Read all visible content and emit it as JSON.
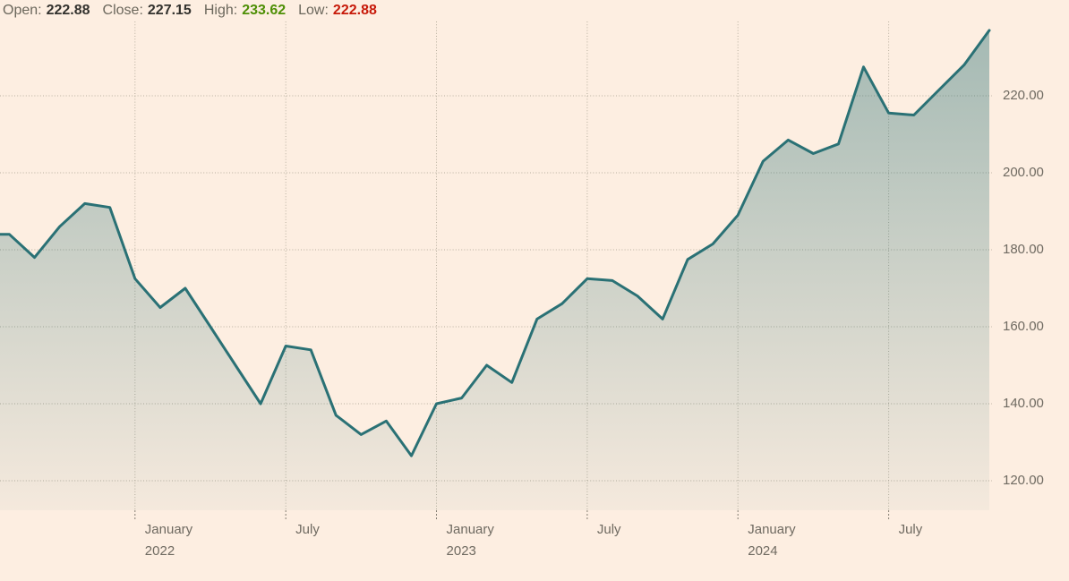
{
  "header": {
    "open_label": "Open:",
    "open_value": "222.88",
    "close_label": "Close:",
    "close_value": "227.15",
    "high_label": "High:",
    "high_value": "233.62",
    "low_label": "Low:",
    "low_value": "222.88"
  },
  "colors": {
    "background": "#fdeee1",
    "line": "#2a7175",
    "fill_top": "rgba(42,113,117,0.42)",
    "fill_bottom": "rgba(42,113,117,0.04)",
    "grid": "#b7ae9e",
    "tick": "#837d72",
    "axis_text": "#6f6a61",
    "header_label": "#6b675c",
    "header_value": "#33322e",
    "high_color": "#4e8f06",
    "low_color": "#c71a0a"
  },
  "chart_data": {
    "type": "area",
    "title": "",
    "xlabel": "",
    "ylabel": "",
    "grid": "dotted",
    "legend": "none",
    "ylim": [
      112,
      245
    ],
    "x": [
      "2021-08",
      "2021-09",
      "2021-10",
      "2021-11",
      "2021-12",
      "2022-01",
      "2022-02",
      "2022-03",
      "2022-04",
      "2022-05",
      "2022-06",
      "2022-07",
      "2022-08",
      "2022-09",
      "2022-10",
      "2022-11",
      "2022-12",
      "2023-01",
      "2023-02",
      "2023-03",
      "2023-04",
      "2023-05",
      "2023-06",
      "2023-07",
      "2023-08",
      "2023-09",
      "2023-10",
      "2023-11",
      "2023-12",
      "2024-01",
      "2024-02",
      "2024-03",
      "2024-04",
      "2024-05",
      "2024-06",
      "2024-07",
      "2024-08",
      "2024-09",
      "2024-10",
      "2024-11"
    ],
    "values": [
      184,
      178,
      186,
      192,
      191,
      172.5,
      165,
      170,
      160,
      150,
      140,
      155,
      154,
      137,
      132,
      135.5,
      126.5,
      140,
      141.5,
      150,
      145.5,
      162,
      166,
      172.5,
      172,
      168,
      162,
      177.5,
      181.5,
      189,
      203,
      208.5,
      205,
      207.5,
      227.5,
      215.5,
      215,
      221.5,
      228,
      237
    ],
    "x_ticks": [
      {
        "index": 5,
        "label": "January",
        "year": "2022"
      },
      {
        "index": 11,
        "label": "July",
        "year": ""
      },
      {
        "index": 17,
        "label": "January",
        "year": "2023"
      },
      {
        "index": 23,
        "label": "July",
        "year": ""
      },
      {
        "index": 29,
        "label": "January",
        "year": "2024"
      },
      {
        "index": 35,
        "label": "July",
        "year": ""
      }
    ],
    "y_ticks": [
      {
        "value": 220,
        "label": "220.00"
      },
      {
        "value": 200,
        "label": "200.00"
      },
      {
        "value": 180,
        "label": "180.00"
      },
      {
        "value": 160,
        "label": "160.00"
      },
      {
        "value": 140,
        "label": "140.00"
      },
      {
        "value": 120,
        "label": "120.00"
      }
    ]
  }
}
